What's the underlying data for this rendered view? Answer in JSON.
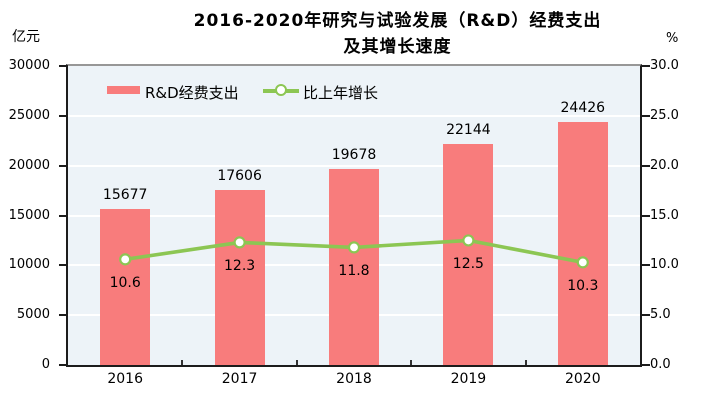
{
  "chart_data": {
    "type": "bar+line",
    "title": "2016-2020年研究与试验发展（R&D）经费支出及其增长速度",
    "title_lines": [
      "2016-2020年研究与试验发展（R&D）经费支出",
      "及其增长速度"
    ],
    "categories": [
      "2016",
      "2017",
      "2018",
      "2019",
      "2020"
    ],
    "series": [
      {
        "name": "R&D经费支出",
        "type": "bar",
        "axis": "left",
        "color": "#f87c7c",
        "values": [
          15677,
          17606,
          19678,
          22144,
          24426
        ]
      },
      {
        "name": "比上年增长",
        "type": "line",
        "axis": "right",
        "color": "#8cc653",
        "marker_fill": "#ffffff",
        "values": [
          10.6,
          12.3,
          11.8,
          12.5,
          10.3
        ]
      }
    ],
    "left_axis": {
      "label": "亿元",
      "min": 0,
      "max": 30000,
      "step": 5000,
      "ticks": [
        "0",
        "5000",
        "10000",
        "15000",
        "20000",
        "25000",
        "30000"
      ]
    },
    "right_axis": {
      "label": "%",
      "min": 0,
      "max": 30,
      "step": 5,
      "ticks": [
        "0.0",
        "5.0",
        "10.0",
        "15.0",
        "20.0",
        "25.0",
        "30.0"
      ]
    },
    "legend": {
      "position": "top-inside",
      "items": [
        "R&D经费支出",
        "比上年增长"
      ]
    },
    "style": {
      "plot_bg": "#edf3f8",
      "grid_color": "#ffffff",
      "grid_on": true,
      "axis_color": "#1c1c1c",
      "text_color": "#000000"
    }
  }
}
